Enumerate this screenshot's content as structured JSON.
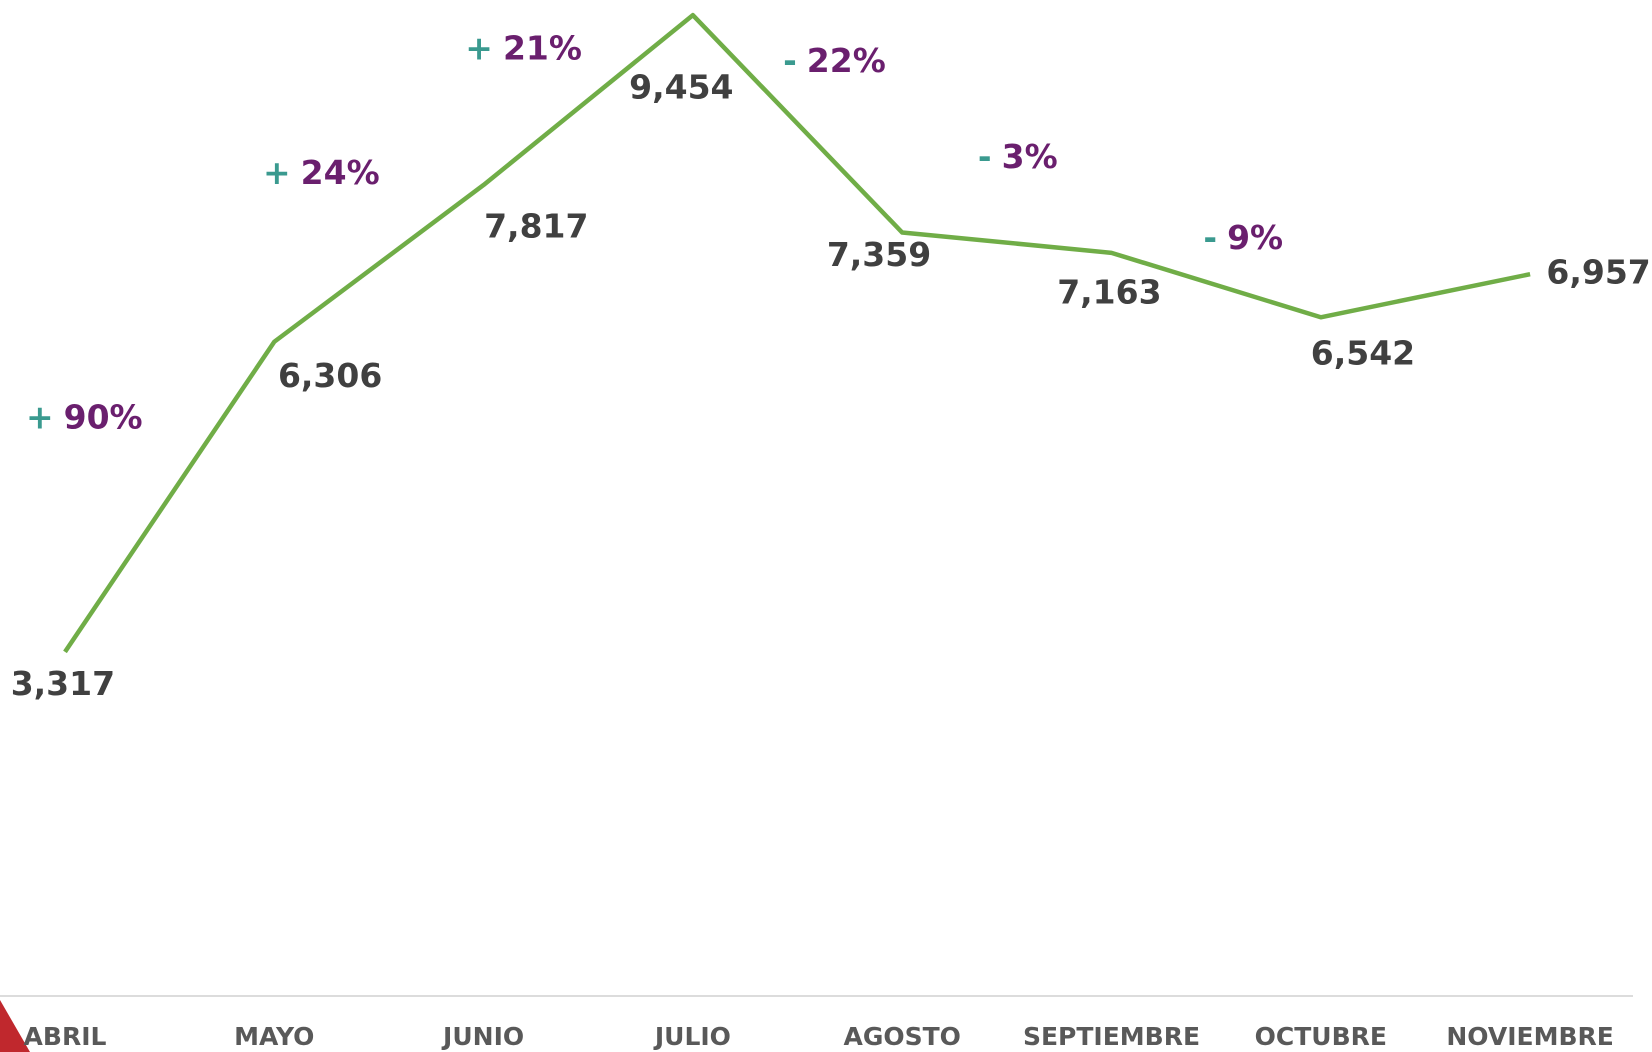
{
  "chart_data": {
    "type": "line",
    "categories": [
      "ABRIL",
      "MAYO",
      "JUNIO",
      "JULIO",
      "AGOSTO",
      "SEPTIEMBRE",
      "OCTUBRE",
      "NOVIEMBRE"
    ],
    "series": [
      {
        "color": "#70ad47",
        "values": [
          3317,
          6306,
          7817,
          9454,
          7359,
          7163,
          6542,
          6957
        ],
        "value_labels": [
          "3,317",
          "6,306",
          "7,817",
          "9,454",
          "7,359",
          "7,163",
          "6,542",
          "6,957"
        ]
      }
    ],
    "changes": [
      {
        "sign": "+",
        "text": "90%"
      },
      {
        "sign": "+",
        "text": "24%"
      },
      {
        "sign": "+",
        "text": "21%"
      },
      {
        "sign": "-",
        "text": "22%"
      },
      {
        "sign": "-",
        "text": "3%"
      },
      {
        "sign": "-",
        "text": "9%"
      }
    ],
    "ylim": [
      0,
      9600
    ]
  }
}
